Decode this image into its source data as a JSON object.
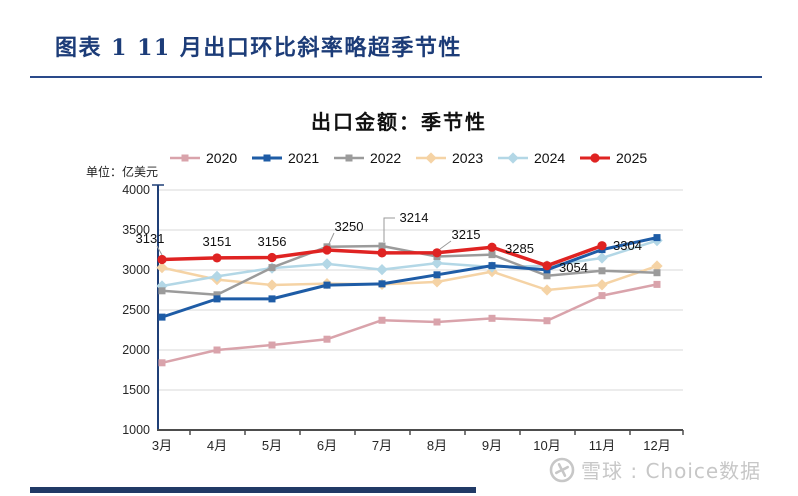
{
  "page": {
    "title": "图表 1  11 月出口环比斜率略超季节性",
    "watermark": {
      "logo_icon": "xueqiu-logo",
      "text": "雪球 : Choice数据"
    }
  },
  "chart_data": {
    "type": "line",
    "title": "出口金额：季节性",
    "unit_label": "单位：亿美元",
    "xlabel": "",
    "ylabel": "",
    "categories": [
      "3月",
      "4月",
      "5月",
      "6月",
      "7月",
      "8月",
      "9月",
      "10月",
      "11月",
      "12月"
    ],
    "series": [
      {
        "name": "2020",
        "color": "#d9a3ab",
        "marker": "square",
        "values": [
          1840,
          2000,
          2062,
          2135,
          2372,
          2350,
          2396,
          2366,
          2680,
          2820
        ]
      },
      {
        "name": "2021",
        "color": "#1e5ca6",
        "marker": "square",
        "values": [
          2411,
          2639,
          2639,
          2811,
          2827,
          2940,
          3055,
          3002,
          3255,
          3405
        ]
      },
      {
        "name": "2022",
        "color": "#9b9b9b",
        "marker": "square",
        "values": [
          2740,
          2690,
          3030,
          3290,
          3300,
          3168,
          3192,
          2928,
          2990,
          2966
        ]
      },
      {
        "name": "2023",
        "color": "#f5d3a5",
        "marker": "diamond",
        "values": [
          3030,
          2880,
          2812,
          2830,
          2820,
          2852,
          2980,
          2750,
          2815,
          3050
        ]
      },
      {
        "name": "2024",
        "color": "#b3d7e6",
        "marker": "diamond",
        "values": [
          2800,
          2920,
          3024,
          3076,
          3005,
          3086,
          3038,
          3052,
          3150,
          3368
        ]
      },
      {
        "name": "2025",
        "color": "#df2322",
        "marker": "circle",
        "values": [
          3131,
          3151,
          3156,
          3250,
          3214,
          3215,
          3285,
          3054,
          3304,
          null
        ],
        "labeled": true
      }
    ],
    "data_labels_series": "2025",
    "data_labels": [
      3131,
      3151,
      3156,
      3250,
      3214,
      3215,
      3285,
      3054,
      3304
    ],
    "ylim": [
      1000,
      4000
    ],
    "yticks": [
      1000,
      1500,
      2000,
      2500,
      3000,
      3500,
      4000
    ],
    "grid": true,
    "legend_position": "top"
  }
}
